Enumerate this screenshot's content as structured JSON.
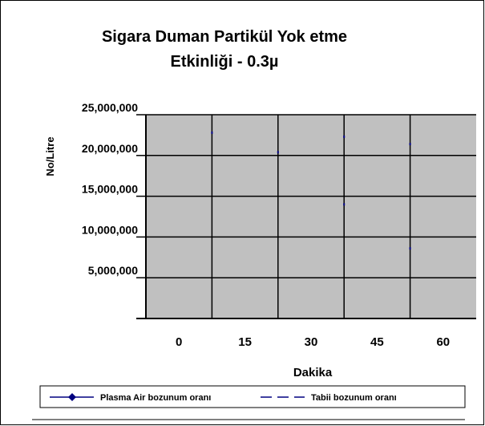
{
  "chart_data": {
    "type": "line",
    "title": [
      "Sigara Duman Partikül Yok etme",
      "Etkinliği - 0.3µ"
    ],
    "x_label": "Dakika",
    "y_label": "No/Litre",
    "categories": [
      "0",
      "15",
      "30",
      "45",
      "60"
    ],
    "series": [
      {
        "name": "Plasma Air bozunum oranı",
        "color": "#000080",
        "values": [
          null,
          null,
          null,
          14000000,
          8600000
        ]
      },
      {
        "name": "Tabii bozunum oranı",
        "color": "#000080",
        "values": [
          null,
          22800000,
          20400000,
          22300000,
          21400000
        ]
      }
    ],
    "ylim": [
      0,
      25000000
    ],
    "yticks": [
      {
        "value": 5000000,
        "label": "5,000,000"
      },
      {
        "value": 10000000,
        "label": "10,000,000"
      },
      {
        "value": 15000000,
        "label": "15,000,000"
      },
      {
        "value": 20000000,
        "label": "20,000,000"
      },
      {
        "value": 25000000,
        "label": "25,000,000"
      }
    ],
    "grid": true,
    "plot_background": "#c0c0c0"
  }
}
